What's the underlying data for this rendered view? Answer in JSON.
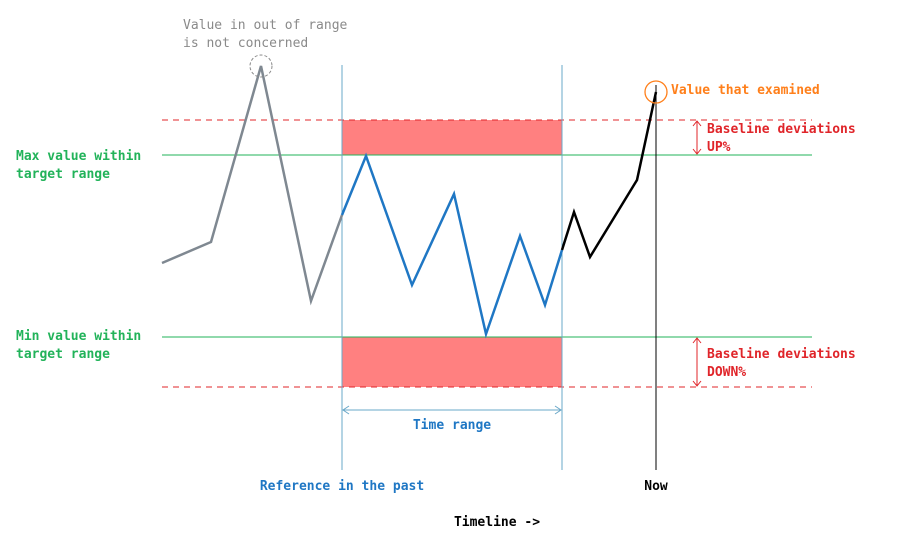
{
  "labels": {
    "out_of_range_line1": "Value in out of range",
    "out_of_range_line2": "is not concerned",
    "examined_value": "Value that examined",
    "max_line1": "Max value within",
    "max_line2": "target range",
    "min_line1": "Min value within",
    "min_line2": "target range",
    "deviation_up_line1": "Baseline deviations",
    "deviation_up_line2": "UP%",
    "deviation_down_line1": "Baseline deviations",
    "deviation_down_line2": "DOWN%",
    "time_range": "Time range",
    "reference": "Reference in the past",
    "now": "Now",
    "timeline": "Timeline ->"
  },
  "colors": {
    "gray_series": "#7f8891",
    "blue_series": "#1f77c4",
    "black_series": "#000000",
    "target_range_lines": "#22b35a",
    "deviation_lines": "#e0252a",
    "deviation_band": "#ff8080",
    "window_lines": "#6aa8c8",
    "gray_text": "#8a8a8a",
    "orange_text": "#ff7f1a"
  }
}
